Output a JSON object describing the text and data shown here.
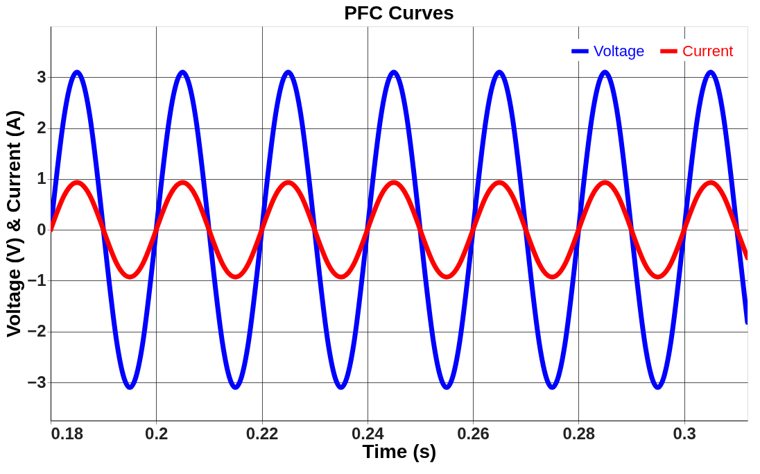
{
  "chart_data": {
    "type": "line",
    "title": "PFC Curves",
    "xlabel": "Time (s)",
    "ylabel": "Voltage (V) & Current (A)",
    "x": [
      0.18,
      0.1825,
      0.185,
      0.1875,
      0.19,
      0.1925,
      0.195,
      0.1975,
      0.2,
      0.2025,
      0.205,
      0.2075,
      0.21,
      0.2125,
      0.215,
      0.2175,
      0.22,
      0.2225,
      0.225,
      0.2275,
      0.23,
      0.2325,
      0.235,
      0.2375,
      0.24,
      0.2425,
      0.245,
      0.2475,
      0.25,
      0.2525,
      0.255,
      0.2575,
      0.26,
      0.2625,
      0.265,
      0.2675,
      0.27,
      0.2725,
      0.275,
      0.2775,
      0.28,
      0.2825,
      0.285,
      0.2875,
      0.29,
      0.2925,
      0.295,
      0.2975,
      0.3,
      0.3025,
      0.305,
      0.3075,
      0.31,
      0.312
    ],
    "series": [
      {
        "name": "Voltage",
        "color": "#0000ff",
        "values": [
          0,
          2.19,
          3.1,
          2.19,
          0,
          -2.19,
          -3.1,
          -2.19,
          0,
          2.19,
          3.1,
          2.19,
          0,
          -2.19,
          -3.1,
          -2.19,
          0,
          2.19,
          3.1,
          2.19,
          0,
          -2.19,
          -3.1,
          -2.19,
          0,
          2.19,
          3.1,
          2.19,
          0,
          -2.19,
          -3.1,
          -2.19,
          0,
          2.19,
          3.1,
          2.19,
          0,
          -2.19,
          -3.1,
          -2.19,
          0,
          2.19,
          3.1,
          2.19,
          0,
          -2.19,
          -3.1,
          -2.19,
          0,
          2.19,
          3.1,
          2.19,
          0,
          -1.82
        ]
      },
      {
        "name": "Current",
        "color": "#ff0000",
        "values": [
          0,
          0.66,
          0.93,
          0.66,
          0,
          -0.66,
          -0.93,
          -0.66,
          0,
          0.66,
          0.93,
          0.66,
          0,
          -0.66,
          -0.93,
          -0.66,
          0,
          0.66,
          0.93,
          0.66,
          0,
          -0.66,
          -0.93,
          -0.66,
          0,
          0.66,
          0.93,
          0.66,
          0,
          -0.66,
          -0.93,
          -0.66,
          0,
          0.66,
          0.93,
          0.66,
          0,
          -0.66,
          -0.93,
          -0.66,
          0,
          0.66,
          0.93,
          0.66,
          0,
          -0.66,
          -0.93,
          -0.66,
          0,
          0.66,
          0.93,
          0.66,
          0,
          -0.55
        ]
      }
    ],
    "xlim": [
      0.18,
      0.312
    ],
    "ylim": [
      -3.75,
      4
    ],
    "xticks": [
      0.18,
      0.2,
      0.22,
      0.24,
      0.26,
      0.28,
      0.3
    ],
    "yticks": [
      -3,
      -2,
      -1,
      0,
      1,
      2,
      3
    ],
    "grid": true,
    "legend": "top right",
    "marker": "none",
    "line_style": "solid"
  }
}
